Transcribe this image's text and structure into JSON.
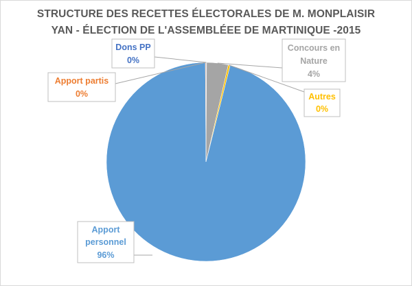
{
  "chart_data": {
    "type": "pie",
    "title_lines": [
      "STRUCTURE DES RECETTES ÉLECTORALES DE M. MONPLAISIR",
      "YAN - ÉLECTION DE L'ASSEMBLÉEE DE MARTINIQUE -2015"
    ],
    "slices": [
      {
        "label": "Dons PP",
        "value": 0.1,
        "pct_label": "0%",
        "color": "#4472c4"
      },
      {
        "label": "Concours en Nature",
        "value": 3.5,
        "pct_label": "4%",
        "color": "#a5a5a5"
      },
      {
        "label": "Autres",
        "value": 0.3,
        "pct_label": "0%",
        "color": "#ffc000"
      },
      {
        "label": "Apport personnel",
        "value": 96,
        "pct_label": "96%",
        "color": "#5b9bd5"
      },
      {
        "label": "Apport partis",
        "value": 0.1,
        "pct_label": "0%",
        "color": "#ed7d31"
      }
    ]
  }
}
